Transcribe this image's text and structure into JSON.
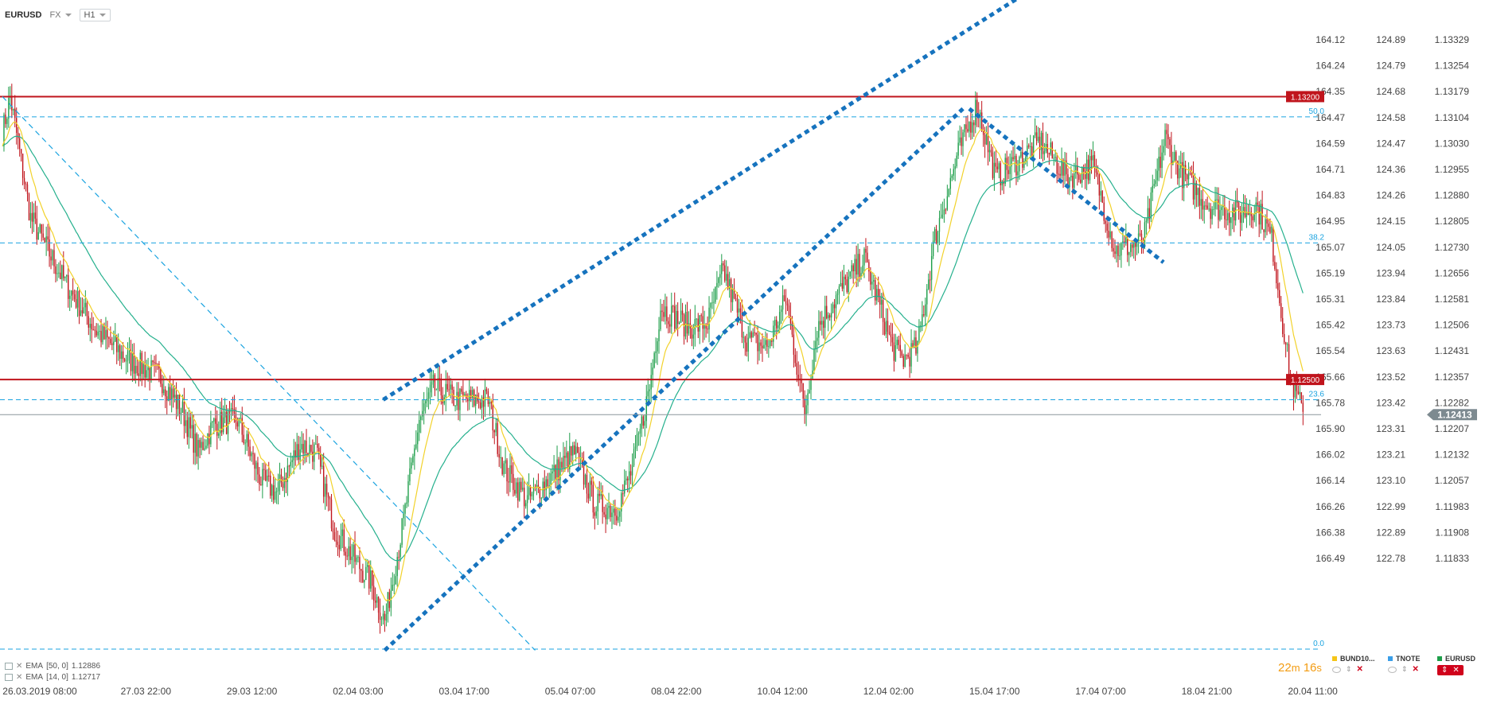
{
  "toolbar": {
    "symbol": "EURUSD",
    "type": "FX",
    "interval": "H1"
  },
  "chart_data": {
    "type": "candlestick",
    "price_range": [
      1.1177,
      1.1338
    ],
    "y_axes": [
      {
        "name": "axis-1",
        "labels": [
          "164.12",
          "164.24",
          "164.35",
          "164.47",
          "164.59",
          "164.71",
          "164.83",
          "164.95",
          "165.07",
          "165.19",
          "165.31",
          "165.42",
          "165.54",
          "165.66",
          "165.78",
          "165.90",
          "166.02",
          "166.14",
          "166.26",
          "166.38",
          "166.49"
        ]
      },
      {
        "name": "axis-2",
        "labels": [
          "124.89",
          "124.79",
          "124.68",
          "124.58",
          "124.47",
          "124.36",
          "124.26",
          "124.15",
          "124.05",
          "123.94",
          "123.84",
          "123.73",
          "123.63",
          "123.52",
          "123.42",
          "123.31",
          "123.21",
          "123.10",
          "122.99",
          "122.89",
          "122.78"
        ]
      },
      {
        "name": "axis-3",
        "labels": [
          "1.13329",
          "1.13254",
          "1.13179",
          "1.13104",
          "1.13030",
          "1.12955",
          "1.12880",
          "1.12805",
          "1.12730",
          "1.12656",
          "1.12581",
          "1.12506",
          "1.12431",
          "1.12357",
          "1.12282",
          "1.12207",
          "1.12132",
          "1.12057",
          "1.11983",
          "1.11908",
          "1.11833"
        ]
      }
    ],
    "x_labels": [
      "26.03.2019  08:00",
      "27.03  22:00",
      "29.03  12:00",
      "02.04  03:00",
      "03.04  17:00",
      "05.04  07:00",
      "08.04  22:00",
      "10.04  12:00",
      "12.04  02:00",
      "15.04  17:00",
      "17.04  07:00",
      "18.04  21:00",
      "20.04  11:00"
    ],
    "last_price": "1.12413",
    "anchors": [
      {
        "i": 0,
        "p": 1.1311
      },
      {
        "i": 5,
        "p": 1.132
      },
      {
        "i": 18,
        "p": 1.129
      },
      {
        "i": 40,
        "p": 1.1274
      },
      {
        "i": 60,
        "p": 1.1262
      },
      {
        "i": 80,
        "p": 1.1255
      },
      {
        "i": 100,
        "p": 1.1251
      },
      {
        "i": 115,
        "p": 1.1242
      },
      {
        "i": 125,
        "p": 1.1232
      },
      {
        "i": 135,
        "p": 1.1239
      },
      {
        "i": 150,
        "p": 1.124
      },
      {
        "i": 165,
        "p": 1.1225
      },
      {
        "i": 175,
        "p": 1.1222
      },
      {
        "i": 190,
        "p": 1.1234
      },
      {
        "i": 200,
        "p": 1.1232
      },
      {
        "i": 212,
        "p": 1.1213
      },
      {
        "i": 222,
        "p": 1.1207
      },
      {
        "i": 235,
        "p": 1.12
      },
      {
        "i": 244,
        "p": 1.119
      },
      {
        "i": 256,
        "p": 1.1215
      },
      {
        "i": 266,
        "p": 1.124
      },
      {
        "i": 275,
        "p": 1.1248
      },
      {
        "i": 290,
        "p": 1.1245
      },
      {
        "i": 310,
        "p": 1.1245
      },
      {
        "i": 320,
        "p": 1.1228
      },
      {
        "i": 335,
        "p": 1.122
      },
      {
        "i": 350,
        "p": 1.1226
      },
      {
        "i": 365,
        "p": 1.1232
      },
      {
        "i": 378,
        "p": 1.1219
      },
      {
        "i": 392,
        "p": 1.1218
      },
      {
        "i": 402,
        "p": 1.1228
      },
      {
        "i": 413,
        "p": 1.1248
      },
      {
        "i": 420,
        "p": 1.1268
      },
      {
        "i": 438,
        "p": 1.1263
      },
      {
        "i": 450,
        "p": 1.1264
      },
      {
        "i": 460,
        "p": 1.1277
      },
      {
        "i": 475,
        "p": 1.126
      },
      {
        "i": 488,
        "p": 1.1258
      },
      {
        "i": 500,
        "p": 1.127
      },
      {
        "i": 512,
        "p": 1.1242
      },
      {
        "i": 520,
        "p": 1.1263
      },
      {
        "i": 535,
        "p": 1.1272
      },
      {
        "i": 550,
        "p": 1.128
      },
      {
        "i": 560,
        "p": 1.1268
      },
      {
        "i": 568,
        "p": 1.1258
      },
      {
        "i": 575,
        "p": 1.1255
      },
      {
        "i": 584,
        "p": 1.1258
      },
      {
        "i": 595,
        "p": 1.1285
      },
      {
        "i": 610,
        "p": 1.1306
      },
      {
        "i": 622,
        "p": 1.1318
      },
      {
        "i": 634,
        "p": 1.13
      },
      {
        "i": 648,
        "p": 1.1304
      },
      {
        "i": 662,
        "p": 1.1309
      },
      {
        "i": 680,
        "p": 1.13
      },
      {
        "i": 696,
        "p": 1.1303
      },
      {
        "i": 710,
        "p": 1.1282
      },
      {
        "i": 728,
        "p": 1.1284
      },
      {
        "i": 742,
        "p": 1.131
      },
      {
        "i": 752,
        "p": 1.1301
      },
      {
        "i": 770,
        "p": 1.1293
      },
      {
        "i": 790,
        "p": 1.1291
      },
      {
        "i": 800,
        "p": 1.1293
      },
      {
        "i": 810,
        "p": 1.1285
      },
      {
        "i": 815,
        "p": 1.127
      },
      {
        "i": 822,
        "p": 1.125
      },
      {
        "i": 830,
        "p": 1.1242
      }
    ],
    "ema_legend": [
      {
        "name": "EMA",
        "params": "[50, 0]",
        "value": "1.12886"
      },
      {
        "name": "EMA",
        "params": "[14, 0]",
        "value": "1.12717"
      }
    ],
    "horizontal_lines": [
      {
        "price": 1.132,
        "label": "1.13200",
        "style": "solid",
        "color": "#c0141c"
      },
      {
        "price": 1.125,
        "label": "1.12500",
        "style": "solid",
        "color": "#c0141c"
      }
    ],
    "fib_levels": [
      {
        "label": "50.0",
        "price": 1.1315
      },
      {
        "label": "38.2",
        "price": 1.12838
      },
      {
        "label": "23.6",
        "price": 1.1245
      },
      {
        "label": "0.0",
        "price": 1.11833
      }
    ],
    "trend_lines": [
      {
        "style": "dotted",
        "color": "#1673be",
        "p1": {
          "i": 244,
          "p": 1.1183
        },
        "p2": {
          "i": 613,
          "p": 1.1317
        }
      },
      {
        "style": "dotted",
        "color": "#1673be",
        "p1": {
          "i": 243,
          "p": 1.1245
        },
        "p2": {
          "i": 724,
          "p": 1.1363
        }
      },
      {
        "style": "dotted",
        "color": "#1673be",
        "p1": {
          "i": 617,
          "p": 1.1317
        },
        "p2": {
          "i": 741,
          "p": 1.1279
        }
      },
      {
        "style": "dashed",
        "color": "#1aa3e0",
        "p1": {
          "i": 0,
          "p": 1.132
        },
        "p2": {
          "i": 340,
          "p": 1.1183
        }
      }
    ]
  },
  "countdown": {
    "min": "22",
    "min_unit": "m",
    "sec": "16",
    "sec_unit": "s"
  },
  "instruments": [
    {
      "name": "BUND10...",
      "color": "#f5c518"
    },
    {
      "name": "TNOTE",
      "color": "#3a9ee8"
    },
    {
      "name": "EURUSD",
      "color": "#1e9e4a"
    }
  ],
  "colors": {
    "up": "#1e9e4a",
    "down": "#c0141c",
    "ema50": "#25b08d",
    "ema14": "#f2d22b",
    "grid": "#eef0f2"
  }
}
